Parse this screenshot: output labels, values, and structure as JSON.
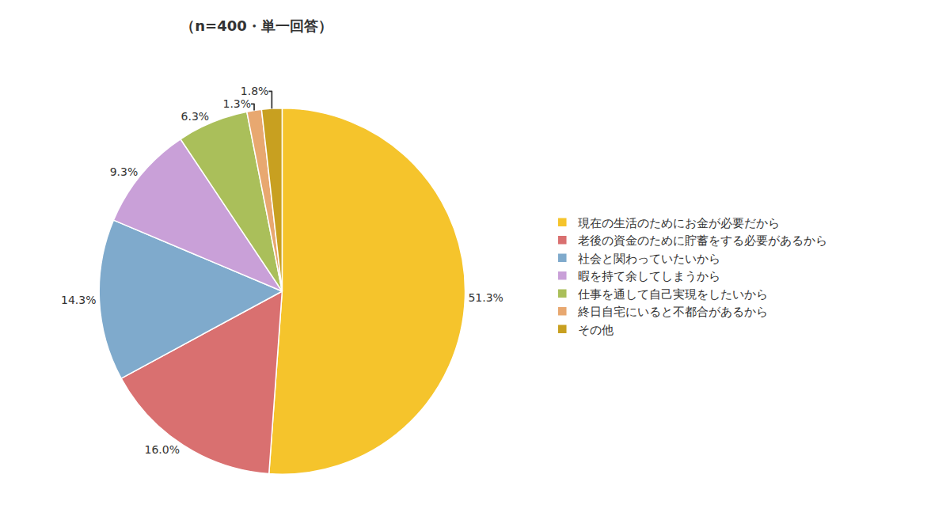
{
  "chart_data": {
    "type": "pie",
    "title": "（n=400・単一回答）",
    "categories": [
      "現在の生活のためにお金が必要だから",
      "老後の資金のために貯蓄をする必要があるから",
      "社会と関わっていたいから",
      "暇を持て余してしまうから",
      "仕事を通して自己実現をしたいから",
      "終日自宅にいると不都合があるから",
      "その他"
    ],
    "values": [
      51.3,
      16.0,
      14.3,
      9.3,
      6.3,
      1.3,
      1.8
    ],
    "value_labels": [
      "51.3%",
      "16.0%",
      "14.3%",
      "9.3%",
      "6.3%",
      "1.3%",
      "1.8%"
    ],
    "colors": [
      "#F5C42C",
      "#D97070",
      "#7FAACC",
      "#C9A0D8",
      "#AABF5A",
      "#E8A870",
      "#C8A020"
    ],
    "data_labels": true,
    "legend": "right"
  }
}
